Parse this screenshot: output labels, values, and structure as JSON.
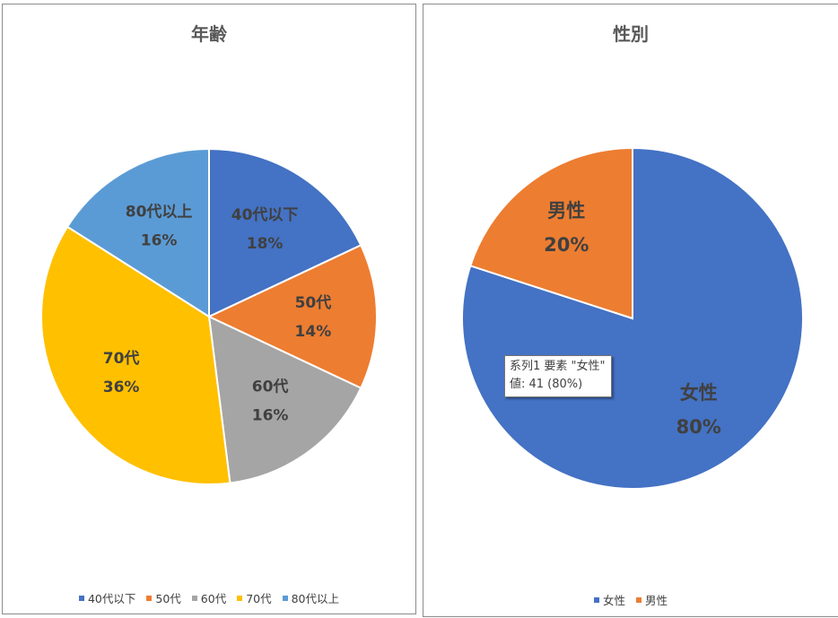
{
  "chart_data": [
    {
      "type": "pie",
      "title": "年齢",
      "slices": [
        {
          "label": "40代以下",
          "value": 18,
          "pct_label": "18%",
          "color": "#4472C4"
        },
        {
          "label": "50代",
          "value": 14,
          "pct_label": "14%",
          "color": "#ED7D31"
        },
        {
          "label": "60代",
          "value": 16,
          "pct_label": "16%",
          "color": "#A5A5A5"
        },
        {
          "label": "70代",
          "value": 36,
          "pct_label": "36%",
          "color": "#FFC000"
        },
        {
          "label": "80代以上",
          "value": 16,
          "pct_label": "16%",
          "color": "#5B9BD5"
        }
      ],
      "legend": [
        "40代以下",
        "50代",
        "60代",
        "70代",
        "80代以上"
      ],
      "legend_position": "bottom"
    },
    {
      "type": "pie",
      "title": "性別",
      "slices": [
        {
          "label": "女性",
          "value": 80,
          "pct_label": "80%",
          "color": "#4472C4"
        },
        {
          "label": "男性",
          "value": 20,
          "pct_label": "20%",
          "color": "#ED7D31"
        }
      ],
      "legend": [
        "女性",
        "男性"
      ],
      "legend_position": "bottom"
    }
  ],
  "tooltip": {
    "line1": "系列1 要素 \"女性\"",
    "line2": "値: 41 (80%)"
  }
}
